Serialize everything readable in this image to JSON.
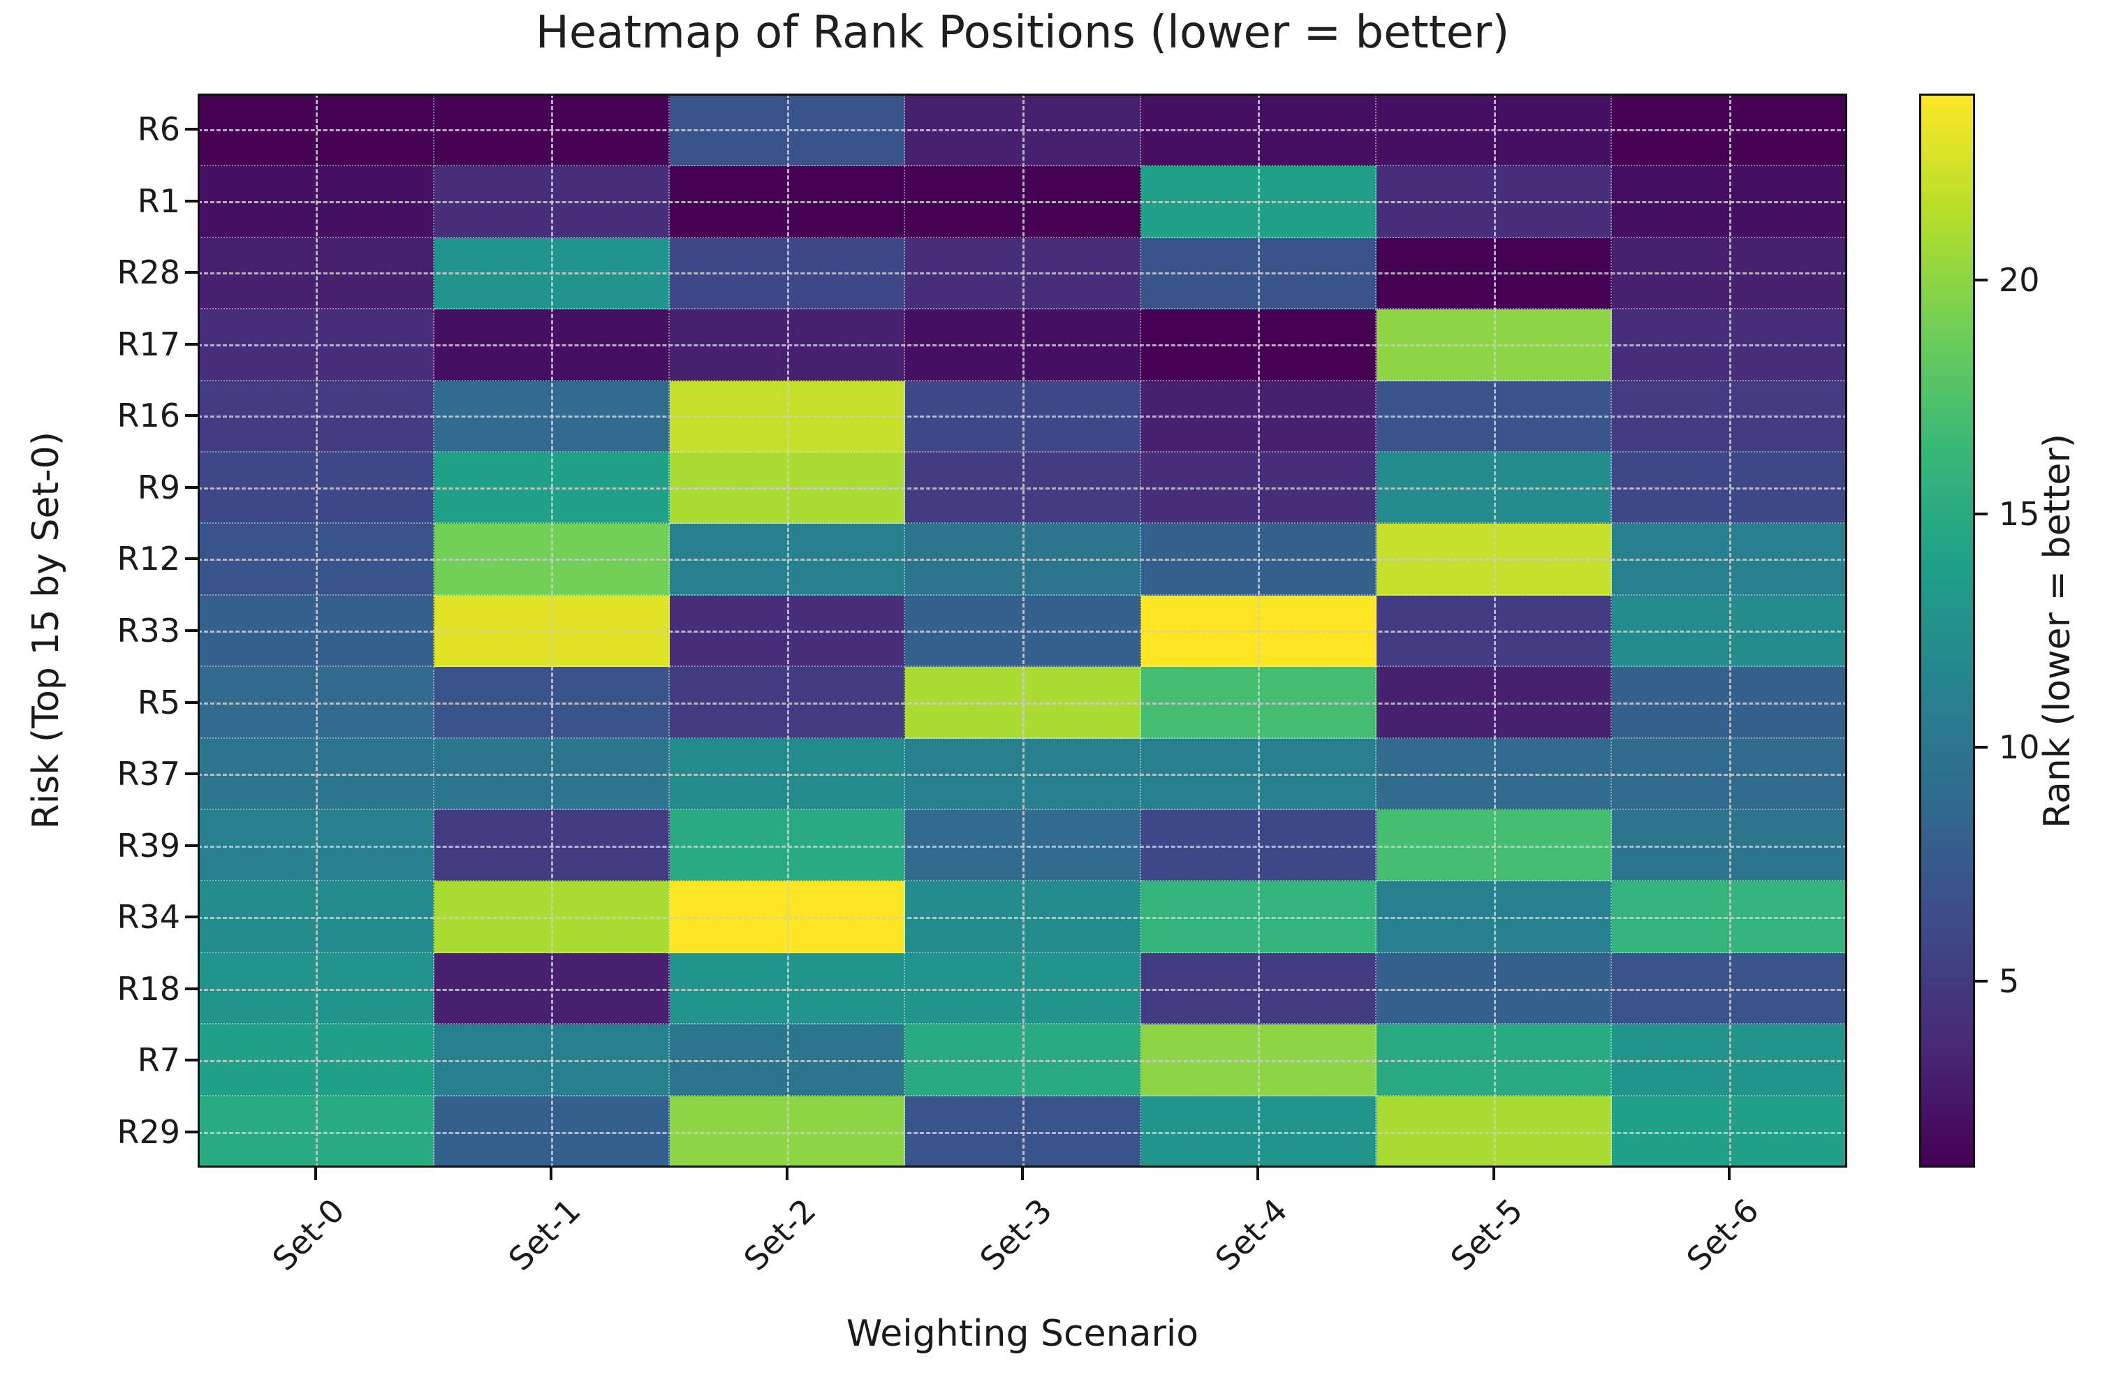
{
  "title": "Heatmap of Rank Positions (lower = better)",
  "x_axis": {
    "label": "Weighting Scenario",
    "tick_rotation_deg": 45
  },
  "y_axis": {
    "label": "Risk (Top 15 by Set-0)"
  },
  "colorbar": {
    "label": "Rank (lower = better)",
    "ticks": [
      5,
      10,
      15,
      20
    ],
    "vmin": 1,
    "vmax": 24
  },
  "colors": {
    "viridis_stops": [
      "#440154",
      "#482878",
      "#3e4989",
      "#31688e",
      "#26828e",
      "#1f9e89",
      "#35b779",
      "#6ece58",
      "#b5de2b",
      "#fde725"
    ],
    "gridline": "#ccccce",
    "spine": "#111111",
    "text": "#1f1f1f"
  },
  "chart_data": {
    "type": "heatmap",
    "title": "Heatmap of Rank Positions (lower = better)",
    "xlabel": "Weighting Scenario",
    "ylabel": "Risk (Top 15 by Set-0)",
    "colorbar_label": "Rank (lower = better)",
    "colormap": "viridis",
    "value_range": [
      1,
      24
    ],
    "grid": "dashed center gridlines, dotted cell edges",
    "legend_position": "right colorbar",
    "x_categories": [
      "Set-0",
      "Set-1",
      "Set-2",
      "Set-3",
      "Set-4",
      "Set-5",
      "Set-6"
    ],
    "y_categories": [
      "R6",
      "R1",
      "R28",
      "R17",
      "R16",
      "R9",
      "R12",
      "R33",
      "R5",
      "R37",
      "R39",
      "R34",
      "R18",
      "R7",
      "R29"
    ],
    "values_note": "rows follow y_categories (top to bottom), columns follow x_categories; value = rank position (lower = better)",
    "values": [
      [
        1,
        1,
        7,
        3,
        2,
        2,
        1
      ],
      [
        2,
        4,
        1,
        1,
        14,
        4,
        2
      ],
      [
        3,
        13,
        6,
        4,
        7,
        1,
        3
      ],
      [
        4,
        2,
        3,
        2,
        1,
        20,
        4
      ],
      [
        5,
        9,
        22,
        6,
        3,
        7,
        5
      ],
      [
        6,
        14,
        21,
        5,
        4,
        12,
        6
      ],
      [
        7,
        19,
        11,
        10,
        8,
        22,
        11
      ],
      [
        8,
        23,
        4,
        8,
        24,
        5,
        12
      ],
      [
        9,
        7,
        5,
        21,
        17,
        3,
        8
      ],
      [
        10,
        10,
        12,
        11,
        11,
        9,
        9
      ],
      [
        11,
        5,
        15,
        9,
        6,
        17,
        10
      ],
      [
        12,
        21,
        24,
        12,
        16,
        11,
        16
      ],
      [
        13,
        3,
        13,
        13,
        5,
        8,
        7
      ],
      [
        14,
        11,
        10,
        15,
        20,
        15,
        13
      ],
      [
        15,
        8,
        20,
        7,
        13,
        21,
        14
      ]
    ]
  }
}
